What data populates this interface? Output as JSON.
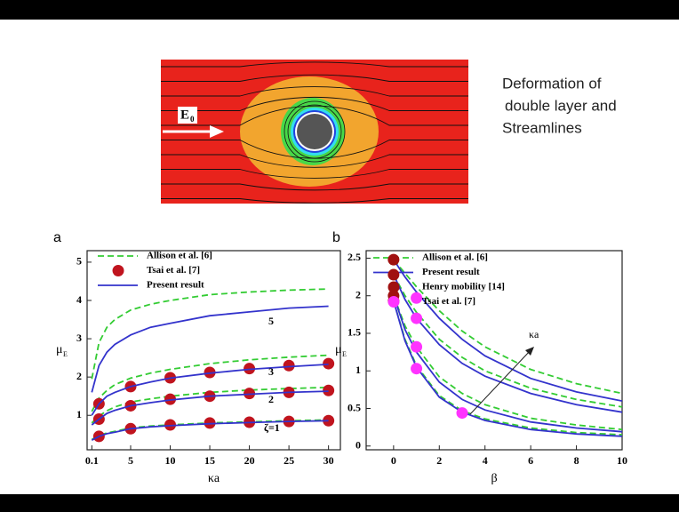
{
  "slide": {
    "caption": [
      "Deformation of",
      "double layer and",
      "Streamlines"
    ],
    "figure_label": {
      "symbol": "E",
      "subscript": "0"
    }
  },
  "chart_data": [
    {
      "type": "line",
      "panel": "a",
      "xlabel": "κa",
      "ylabel": {
        "symbol": "μ",
        "subscript": "E"
      },
      "xlim": [
        -0.5,
        31.5
      ],
      "xticks": [
        0.1,
        5,
        10,
        15,
        20,
        25,
        30
      ],
      "ylim": [
        0.1,
        5.3
      ],
      "yticks": [
        1,
        2,
        3,
        4,
        5
      ],
      "curve_labels": [
        "5",
        "3",
        "2",
        "ζ=1"
      ],
      "series": [
        {
          "name": "Allison et al. [6]",
          "color": "#33cc33",
          "dashed": true,
          "marker": false,
          "x": [
            0.1,
            1,
            2,
            3,
            5,
            7.5,
            10,
            15,
            20,
            25,
            30
          ],
          "curves": [
            [
              1.95,
              2.9,
              3.3,
              3.5,
              3.75,
              3.9,
              4.0,
              4.15,
              4.22,
              4.27,
              4.3
            ],
            [
              1.1,
              1.45,
              1.65,
              1.8,
              1.97,
              2.1,
              2.2,
              2.35,
              2.45,
              2.52,
              2.57
            ],
            [
              0.8,
              0.98,
              1.12,
              1.22,
              1.35,
              1.43,
              1.5,
              1.6,
              1.66,
              1.7,
              1.73
            ],
            [
              0.37,
              0.47,
              0.54,
              0.58,
              0.67,
              0.72,
              0.75,
              0.8,
              0.83,
              0.86,
              0.88
            ]
          ]
        },
        {
          "name": "Tsai et al. [7]",
          "color": "#c0141e",
          "dashed": false,
          "marker": true,
          "x": [
            1,
            5,
            10,
            15,
            20,
            25,
            30
          ],
          "curves": [
            [
              1.3,
              1.75,
              1.98,
              2.12,
              2.22,
              2.3,
              2.35
            ],
            [
              0.9,
              1.25,
              1.42,
              1.5,
              1.57,
              1.6,
              1.65
            ],
            [
              0.45,
              0.65,
              0.75,
              0.8,
              0.82,
              0.84,
              0.86
            ]
          ]
        },
        {
          "name": "Present result",
          "color": "#3333cc",
          "dashed": false,
          "marker": false,
          "x": [
            0.1,
            1,
            2,
            3,
            5,
            7.5,
            10,
            15,
            20,
            25,
            30
          ],
          "curves": [
            [
              1.6,
              2.3,
              2.65,
              2.85,
              3.1,
              3.3,
              3.4,
              3.6,
              3.7,
              3.8,
              3.85
            ],
            [
              1.0,
              1.3,
              1.5,
              1.6,
              1.75,
              1.87,
              1.97,
              2.1,
              2.2,
              2.27,
              2.33
            ],
            [
              0.75,
              0.9,
              1.05,
              1.13,
              1.25,
              1.33,
              1.4,
              1.5,
              1.55,
              1.6,
              1.63
            ],
            [
              0.35,
              0.45,
              0.52,
              0.56,
              0.65,
              0.7,
              0.73,
              0.78,
              0.81,
              0.84,
              0.86
            ]
          ]
        }
      ]
    },
    {
      "type": "line",
      "panel": "b",
      "xlabel": "β",
      "ylabel": {
        "symbol": "μ",
        "subscript": "E"
      },
      "xlim": [
        -1.2,
        10
      ],
      "xticks": [
        0,
        2,
        4,
        6,
        8,
        10
      ],
      "ylim": [
        -0.05,
        2.6
      ],
      "yticks": [
        0,
        0.5,
        1,
        1.5,
        2,
        2.5
      ],
      "annotation": "κa",
      "series": [
        {
          "name": "Allison et al. [6]",
          "color": "#33cc33",
          "dashed": true,
          "marker": false,
          "x": [
            0,
            0.5,
            1,
            2,
            3,
            4,
            6,
            8,
            10
          ],
          "curves": [
            [
              2.48,
              2.3,
              2.12,
              1.8,
              1.53,
              1.32,
              1.02,
              0.83,
              0.7
            ],
            [
              2.28,
              2.0,
              1.78,
              1.42,
              1.18,
              1.0,
              0.77,
              0.62,
              0.52
            ],
            [
              2.0,
              1.6,
              1.32,
              0.92,
              0.7,
              0.55,
              0.37,
              0.28,
              0.22
            ],
            [
              1.93,
              1.42,
              1.07,
              0.67,
              0.47,
              0.36,
              0.24,
              0.18,
              0.15
            ]
          ]
        },
        {
          "name": "Present result",
          "color": "#3333cc",
          "dashed": false,
          "marker": false,
          "x": [
            0,
            0.5,
            1,
            2,
            3,
            4,
            6,
            8,
            10
          ],
          "curves": [
            [
              2.48,
              2.25,
              2.05,
              1.7,
              1.42,
              1.2,
              0.9,
              0.72,
              0.6
            ],
            [
              2.28,
              1.95,
              1.7,
              1.35,
              1.1,
              0.93,
              0.7,
              0.55,
              0.45
            ],
            [
              2.0,
              1.55,
              1.25,
              0.85,
              0.62,
              0.48,
              0.32,
              0.24,
              0.19
            ],
            [
              1.93,
              1.4,
              1.05,
              0.65,
              0.45,
              0.34,
              0.22,
              0.16,
              0.13
            ]
          ]
        },
        {
          "name": "Henry mobility [14]",
          "color": "#a01010",
          "dashed": false,
          "marker": true,
          "x": [
            0,
            0,
            0,
            0
          ],
          "curves": [
            [
              2.48,
              2.28,
              2.0,
              1.93
            ]
          ]
        },
        {
          "name": "Tsai et al. [7]",
          "color": "#ff33ff",
          "dashed": false,
          "marker": true,
          "x": [
            1,
            1,
            1,
            1,
            3
          ],
          "curves": [
            [
              1.97,
              1.7,
              1.32,
              1.03,
              0.44
            ]
          ]
        }
      ]
    }
  ]
}
